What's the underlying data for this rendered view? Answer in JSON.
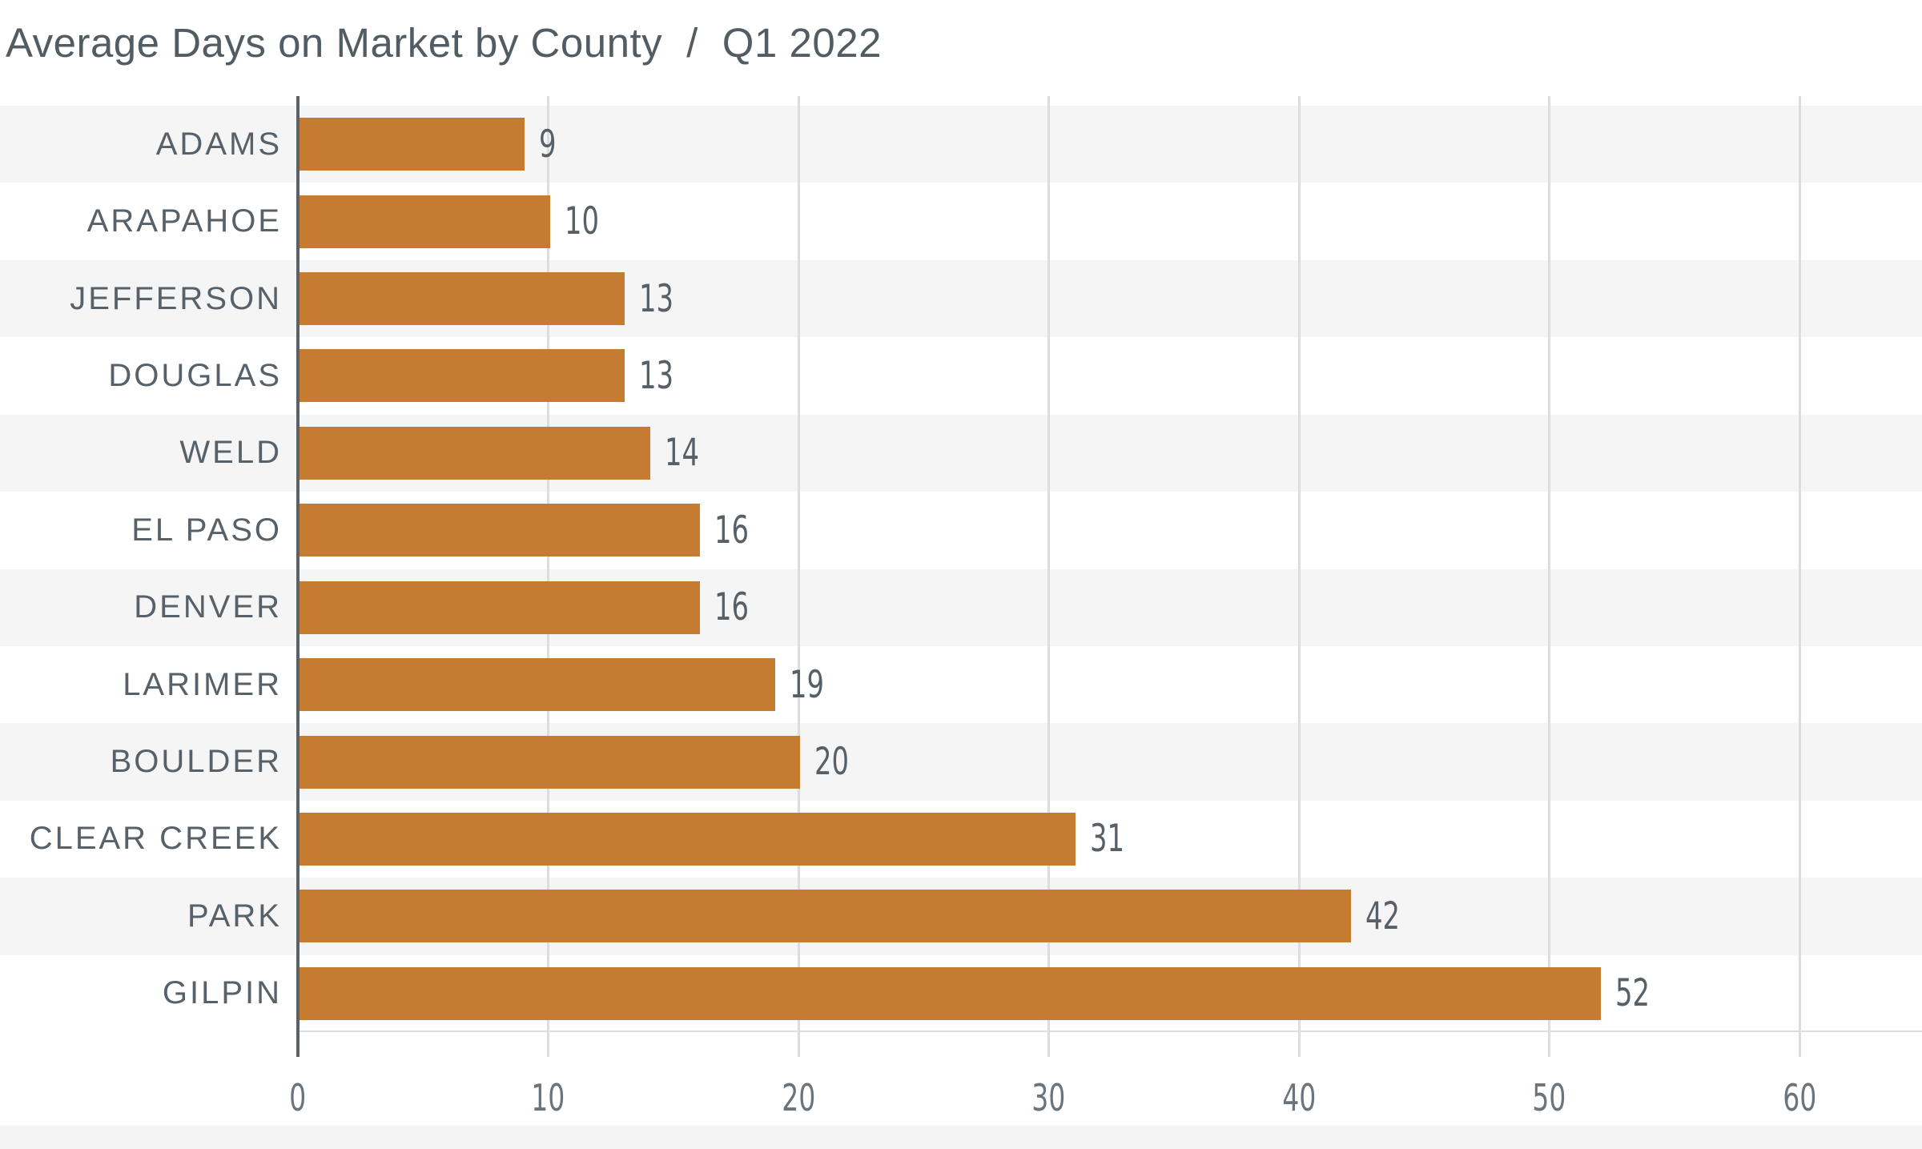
{
  "header": {
    "title": "Average Days on Market by County",
    "separator": "/",
    "period": "Q1 2022"
  },
  "chart_data": {
    "type": "bar",
    "orientation": "horizontal",
    "title": "Average Days on Market by County / Q1 2022",
    "categories": [
      "ADAMS",
      "ARAPAHOE",
      "JEFFERSON",
      "DOUGLAS",
      "WELD",
      "EL PASO",
      "DENVER",
      "LARIMER",
      "BOULDER",
      "CLEAR CREEK",
      "PARK",
      "GILPIN"
    ],
    "values": [
      9,
      10,
      13,
      13,
      14,
      16,
      16,
      19,
      20,
      31,
      42,
      52
    ],
    "xlabel": "",
    "ylabel": "",
    "x_ticks": [
      0,
      10,
      20,
      30,
      40,
      50,
      60
    ],
    "xlim": [
      0,
      65
    ],
    "grid": "vertical",
    "legend": "none",
    "row_banding": "alternating, first row shaded",
    "colors": {
      "bar": "#C67C30",
      "band": "#F5F5F6",
      "gridline": "#DCDDDE",
      "axis": "#596269",
      "baseline": "#DDDEDF",
      "title_text": "#515C63",
      "category_text": "#57616A",
      "value_text": "#575F67",
      "tick_text": "#6B747B",
      "bottom_strip": "#F4F4F5"
    }
  }
}
